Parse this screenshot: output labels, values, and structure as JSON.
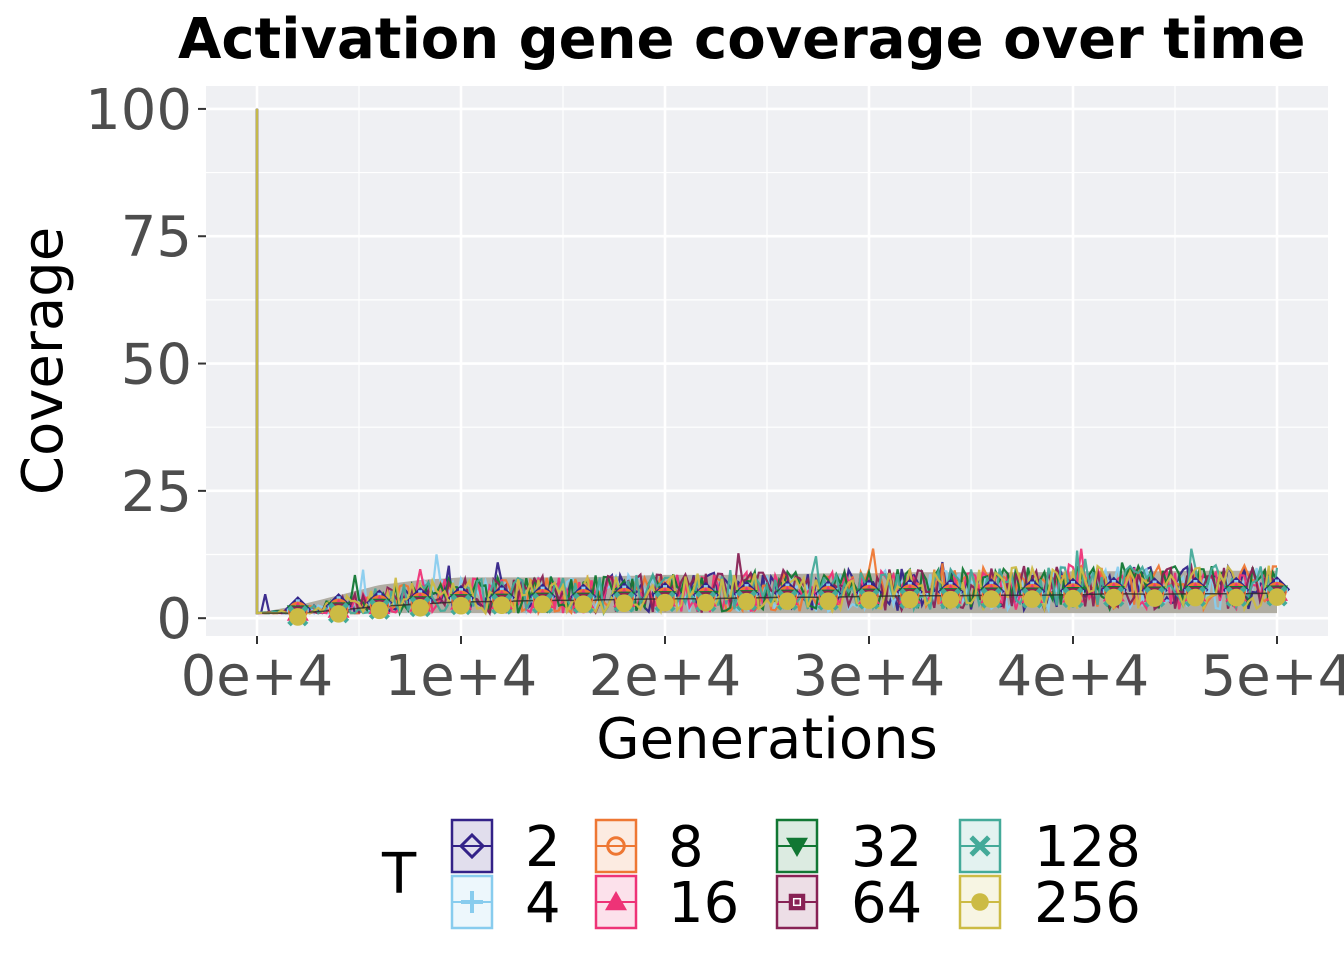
{
  "colors": {
    "panel": "#eff0f3",
    "grid": "#ffffff",
    "ribbon": "#a8a59a"
  },
  "chart_data": {
    "type": "line",
    "title": "Activation gene coverage over time",
    "xlabel": "Generations",
    "ylabel": "Coverage",
    "xlim": [
      -2500,
      52500
    ],
    "ylim": [
      -3.5,
      104.5
    ],
    "x_ticks": [
      0,
      10000,
      20000,
      30000,
      40000,
      50000
    ],
    "x_tick_labels": [
      "0e+4",
      "1e+4",
      "2e+4",
      "3e+4",
      "4e+4",
      "5e+4"
    ],
    "y_ticks": [
      0,
      25,
      50,
      75,
      100
    ],
    "y_tick_labels": [
      "0",
      "25",
      "50",
      "75",
      "100"
    ],
    "grid": true,
    "legend": {
      "title": "T",
      "position": "bottom",
      "entries": [
        {
          "label": "2",
          "color": "#332288",
          "shape": "diamond"
        },
        {
          "label": "4",
          "color": "#88ccee",
          "shape": "plus"
        },
        {
          "label": "8",
          "color": "#ee7733",
          "shape": "circle-open"
        },
        {
          "label": "16",
          "color": "#ee3377",
          "shape": "triangle-up"
        },
        {
          "label": "32",
          "color": "#117733",
          "shape": "triangle-down"
        },
        {
          "label": "64",
          "color": "#882255",
          "shape": "square"
        },
        {
          "label": "128",
          "color": "#44aa99",
          "shape": "cross"
        },
        {
          "label": "256",
          "color": "#ccbb44",
          "shape": "circle"
        }
      ]
    },
    "series_summary": {
      "initial_value_at_generation_0": 100,
      "marker_x": [
        2000,
        4000,
        6000,
        8000,
        10000,
        12000,
        14000,
        16000,
        18000,
        20000,
        22000,
        24000,
        26000,
        28000,
        30000,
        32000,
        34000,
        36000,
        38000,
        40000,
        42000,
        44000,
        46000,
        48000,
        50000
      ],
      "median_y": [
        1.0,
        1.6,
        2.3,
        2.8,
        3.2,
        3.3,
        3.5,
        3.5,
        3.7,
        3.8,
        3.8,
        4.0,
        4.1,
        4.1,
        4.3,
        4.4,
        4.4,
        4.5,
        4.5,
        4.6,
        4.8,
        4.7,
        4.8,
        4.8,
        4.9
      ],
      "ribbon_low_y": [
        1,
        1,
        1,
        1,
        1,
        1,
        1,
        1,
        1,
        1,
        1,
        1,
        1,
        1,
        1,
        1,
        1,
        1,
        1,
        1,
        1,
        1,
        1,
        1,
        1
      ],
      "ribbon_high_y": [
        2.5,
        4.5,
        6.5,
        7.5,
        8.0,
        8.0,
        8.0,
        8.0,
        8.3,
        8.5,
        8.5,
        8.5,
        8.7,
        8.8,
        8.8,
        9.0,
        9.0,
        9.0,
        9.0,
        9.2,
        9.2,
        9.2,
        9.3,
        9.3,
        9.3
      ]
    }
  }
}
